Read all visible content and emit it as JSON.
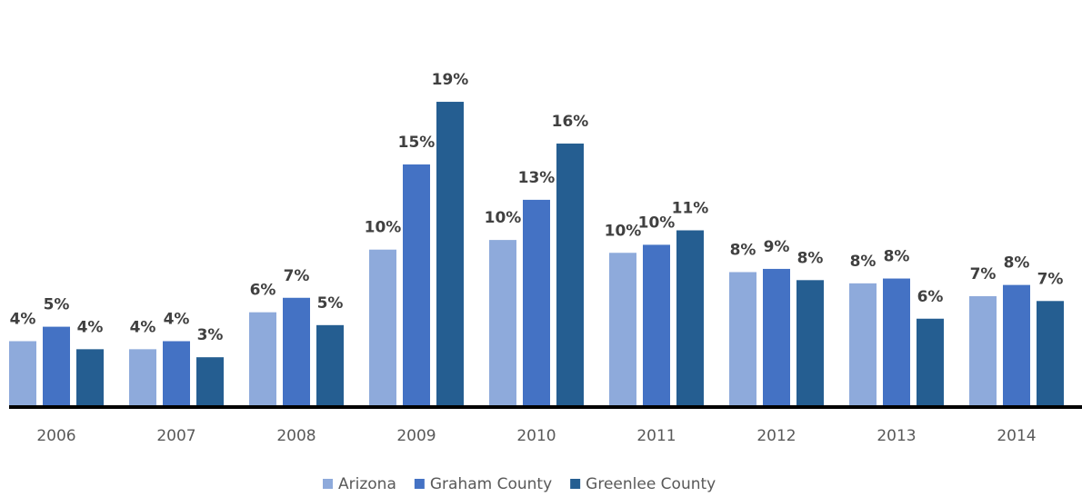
{
  "chart_data": {
    "type": "bar",
    "categories": [
      "2006",
      "2007",
      "2008",
      "2009",
      "2010",
      "2011",
      "2012",
      "2013",
      "2014"
    ],
    "series": [
      {
        "name": "Arizona",
        "color": "#8eaadb",
        "values": [
          4.1,
          3.6,
          5.9,
          9.8,
          10.4,
          9.6,
          8.4,
          7.7,
          6.9
        ],
        "value_labels": [
          "4%",
          "4%",
          "6%",
          "10%",
          "10%",
          "10%",
          "8%",
          "8%",
          "7%"
        ]
      },
      {
        "name": "Graham County",
        "color": "#4472c4",
        "values": [
          5.0,
          4.1,
          6.8,
          15.1,
          12.9,
          10.1,
          8.6,
          8.0,
          7.6
        ],
        "value_labels": [
          "5%",
          "4%",
          "7%",
          "15%",
          "13%",
          "10%",
          "9%",
          "8%",
          "8%"
        ]
      },
      {
        "name": "Greenlee County",
        "color": "#255e91",
        "values": [
          3.6,
          3.1,
          5.1,
          19.0,
          16.4,
          11.0,
          7.9,
          5.5,
          6.6
        ],
        "value_labels": [
          "4%",
          "3%",
          "5%",
          "19%",
          "16%",
          "11%",
          "8%",
          "6%",
          "7%"
        ]
      }
    ],
    "ylim": [
      0,
      22
    ],
    "legend": "bottom"
  }
}
